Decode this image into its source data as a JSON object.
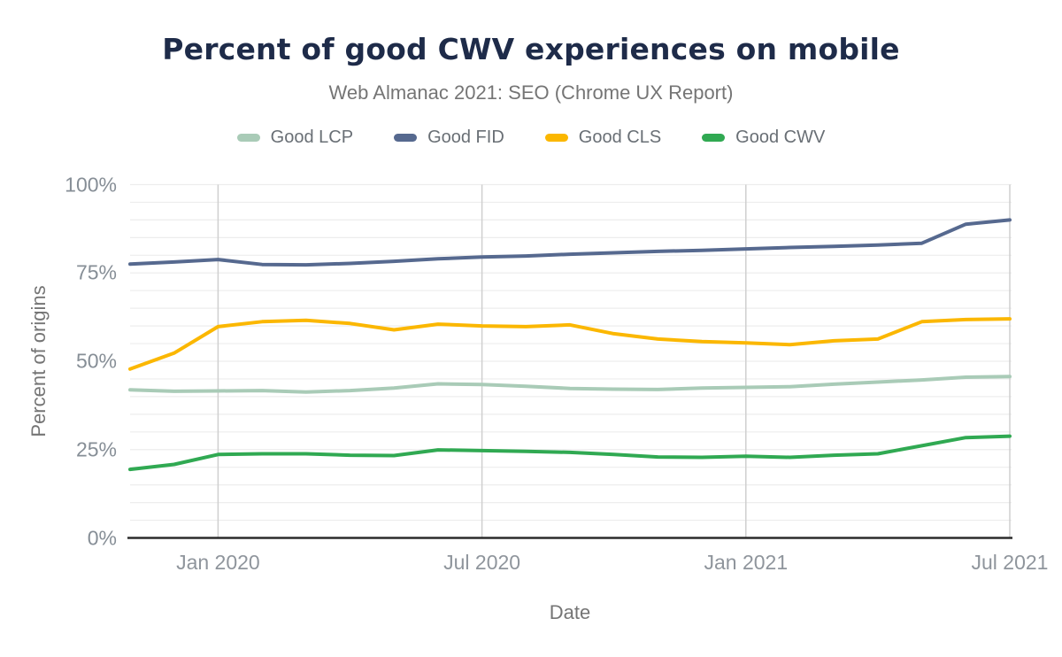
{
  "title": "Percent of good CWV experiences on mobile",
  "subtitle": "Web Almanac 2021: SEO (Chrome UX Report)",
  "colors": {
    "title_text": "#1e2b49",
    "subtitle_text": "#757575",
    "axis_line": "#2b2b2b",
    "horizontal_gridline": "#ededed",
    "vertical_gridline": "#cfcfcf",
    "tick_label_text": "#8c939b",
    "good_lcp": "#a9cbb7",
    "good_fid": "#56698f",
    "good_cls": "#fbb700",
    "good_cwv": "#30a952"
  },
  "legend": {
    "items": [
      {
        "label": "Good LCP",
        "color": "#a9cbb7"
      },
      {
        "label": "Good FID",
        "color": "#56698f"
      },
      {
        "label": "Good CLS",
        "color": "#fbb700"
      },
      {
        "label": "Good CWV",
        "color": "#30a952"
      }
    ]
  },
  "chart_data": {
    "type": "line",
    "title": "Percent of good CWV experiences on mobile",
    "subtitle": "Web Almanac 2021: SEO (Chrome UX Report)",
    "xlabel": "Date",
    "ylabel": "Percent of origins",
    "ylim": [
      0,
      100
    ],
    "grid": {
      "horizontal_minor_step_pct": 5,
      "vertical_at_xticks": true,
      "legend_position": "top-center"
    },
    "x": [
      "Nov 2019",
      "Dec 2019",
      "Jan 2020",
      "Feb 2020",
      "Mar 2020",
      "Apr 2020",
      "May 2020",
      "Jun 2020",
      "Jul 2020",
      "Aug 2020",
      "Sep 2020",
      "Oct 2020",
      "Nov 2020",
      "Dec 2020",
      "Jan 2021",
      "Feb 2021",
      "Mar 2021",
      "Apr 2021",
      "May 2021",
      "Jun 2021",
      "Jul 2021"
    ],
    "xticks": [
      {
        "index": 2,
        "label": "Jan 2020"
      },
      {
        "index": 8,
        "label": "Jul 2020"
      },
      {
        "index": 14,
        "label": "Jan 2021"
      },
      {
        "index": 20,
        "label": "Jul 2021"
      }
    ],
    "yticks": [
      {
        "value": 0,
        "label": "0%"
      },
      {
        "value": 25,
        "label": "25%"
      },
      {
        "value": 50,
        "label": "50%"
      },
      {
        "value": 75,
        "label": "75%"
      },
      {
        "value": 100,
        "label": "100%"
      }
    ],
    "series": [
      {
        "name": "Good LCP",
        "color": "#a9cbb7",
        "values": [
          41.9,
          41.5,
          41.6,
          41.7,
          41.3,
          41.7,
          42.4,
          43.6,
          43.4,
          42.9,
          42.3,
          42.1,
          42.0,
          42.4,
          42.6,
          42.8,
          43.5,
          44.1,
          44.7,
          45.5,
          45.7
        ]
      },
      {
        "name": "Good FID",
        "color": "#56698f",
        "values": [
          77.5,
          78.1,
          78.8,
          77.4,
          77.3,
          77.7,
          78.3,
          79.0,
          79.5,
          79.8,
          80.3,
          80.7,
          81.1,
          81.4,
          81.8,
          82.2,
          82.5,
          82.9,
          83.4,
          88.8,
          90.0
        ]
      },
      {
        "name": "Good CLS",
        "color": "#fbb700",
        "values": [
          47.8,
          52.3,
          59.8,
          61.2,
          61.6,
          60.7,
          58.9,
          60.5,
          60.0,
          59.8,
          60.3,
          57.8,
          56.3,
          55.6,
          55.2,
          54.7,
          55.8,
          56.3,
          61.2,
          61.8,
          62.0
        ]
      },
      {
        "name": "Good CWV",
        "color": "#30a952",
        "values": [
          19.4,
          20.8,
          23.6,
          23.8,
          23.8,
          23.4,
          23.3,
          24.9,
          24.7,
          24.5,
          24.2,
          23.6,
          22.9,
          22.8,
          23.1,
          22.8,
          23.4,
          23.8,
          26.1,
          28.4,
          28.8
        ]
      }
    ]
  }
}
